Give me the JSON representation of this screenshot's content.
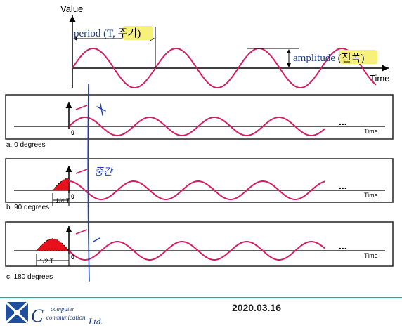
{
  "top_figure": {
    "value_label": "Value",
    "time_label": "Time",
    "period_label": "period (T,",
    "period_highlight": "주기)",
    "amplitude_label": "amplitude",
    "amplitude_highlight": "(진폭)"
  },
  "panels": [
    {
      "caption": "a. 0 degrees",
      "origin_label": "0",
      "time_label": "Time",
      "ellipsis": "...",
      "phase_fraction": 0,
      "handwritten_note": "+"
    },
    {
      "caption": "b. 90 degrees",
      "origin_label": "0",
      "time_label": "Time",
      "ellipsis": "...",
      "phase_fraction": 0.25,
      "shift_label": "1/4 T",
      "handwritten_note": "중간"
    },
    {
      "caption": "c. 180 degrees",
      "origin_label": "0",
      "time_label": "Time",
      "ellipsis": "...",
      "phase_fraction": 0.5,
      "shift_label": "1/2 T",
      "handwritten_note": "−"
    }
  ],
  "footer": {
    "logo_text_line1": "computer",
    "logo_text_line2": "communication",
    "logo_text_suffix": "Ltd.",
    "date": "2020.03.16",
    "rule_color": "#2fa58a"
  },
  "colors": {
    "wave": "#d81b60",
    "shift_fill": "#e8101a",
    "highlight": "#f7f07a",
    "pen": "#1e3fbf"
  }
}
